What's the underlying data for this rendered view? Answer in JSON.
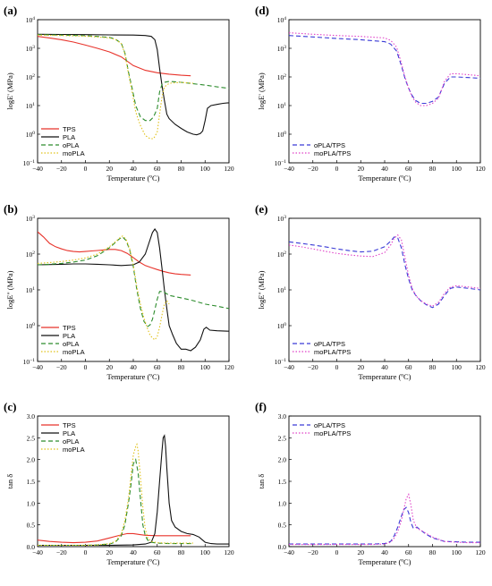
{
  "figure": {
    "background": "#ffffff"
  },
  "colors": {
    "TPS": "#e8332b",
    "PLA": "#111111",
    "oPLA": "#2d8c2d",
    "moPLA": "#e0c21a",
    "oPLA/TPS": "#3a3ad6",
    "moPLA/TPS": "#e040c8"
  },
  "chart_data": [
    {
      "panel": "(a)",
      "type": "line",
      "xlabel": "Temperature (ºC)",
      "ylabel": "logE' (MPa)",
      "xlim": [
        -40,
        120
      ],
      "ylim_log10": [
        -1,
        4
      ],
      "xticks": [
        "-40",
        "-20",
        "0",
        "20",
        "40",
        "60",
        "80",
        "100",
        "120"
      ],
      "yticks": [
        "10-1",
        "100",
        "101",
        "102",
        "103",
        "104"
      ],
      "legend_position": "bottom-left",
      "series": [
        {
          "name": "TPS",
          "x": [
            -40,
            -30,
            -20,
            -10,
            0,
            10,
            20,
            30,
            40,
            50,
            60,
            70,
            80,
            88
          ],
          "y": [
            2600,
            2300,
            2000,
            1650,
            1300,
            1000,
            750,
            500,
            250,
            170,
            140,
            125,
            115,
            110
          ]
        },
        {
          "name": "PLA",
          "x": [
            -40,
            -20,
            0,
            20,
            40,
            50,
            55,
            58,
            60,
            62,
            64,
            66,
            68,
            70,
            75,
            80,
            85,
            90,
            93,
            96,
            98,
            100,
            102,
            105,
            110,
            115,
            120
          ],
          "y": [
            3100,
            3050,
            3000,
            2950,
            2900,
            2800,
            2600,
            2000,
            900,
            200,
            50,
            15,
            5,
            3.5,
            2.2,
            1.6,
            1.2,
            1.0,
            0.95,
            1.05,
            1.3,
            3,
            8,
            10,
            11,
            12,
            12.5
          ]
        },
        {
          "name": "oPLA",
          "x": [
            -40,
            -20,
            0,
            10,
            20,
            25,
            30,
            33,
            36,
            39,
            42,
            46,
            50,
            54,
            57,
            60,
            62,
            64,
            66,
            70,
            75,
            80,
            90,
            100,
            110,
            120
          ],
          "y": [
            3000,
            2900,
            2750,
            2600,
            2400,
            2100,
            1500,
            700,
            150,
            40,
            10,
            4,
            3,
            3,
            4,
            8,
            30,
            55,
            65,
            70,
            68,
            65,
            58,
            52,
            45,
            40
          ]
        },
        {
          "name": "moPLA",
          "x": [
            -40,
            -20,
            0,
            10,
            20,
            25,
            30,
            33,
            36,
            39,
            42,
            46,
            50,
            54,
            57,
            60,
            62,
            64,
            66,
            70,
            80,
            90
          ],
          "y": [
            2900,
            2800,
            2650,
            2500,
            2300,
            2050,
            1450,
            650,
            130,
            30,
            6,
            2,
            0.9,
            0.7,
            0.7,
            1.2,
            5,
            20,
            45,
            60,
            65,
            60
          ]
        }
      ]
    },
    {
      "panel": "(b)",
      "type": "line",
      "xlabel": "Temperature (ºC)",
      "ylabel": "logE'' (MPa)",
      "xlim": [
        -40,
        120
      ],
      "ylim_log10": [
        -1,
        3
      ],
      "xticks": [
        "-40",
        "-20",
        "0",
        "20",
        "40",
        "60",
        "80",
        "100",
        "120"
      ],
      "yticks": [
        "10-1",
        "100",
        "101",
        "102",
        "103"
      ],
      "legend_position": "bottom-left",
      "series": [
        {
          "name": "TPS",
          "x": [
            -40,
            -35,
            -30,
            -25,
            -20,
            -15,
            -10,
            -5,
            0,
            5,
            10,
            15,
            20,
            25,
            30,
            35,
            40,
            45,
            50,
            55,
            60,
            65,
            70,
            75,
            80,
            88
          ],
          "y": [
            420,
            300,
            200,
            160,
            140,
            125,
            118,
            115,
            118,
            122,
            126,
            130,
            135,
            135,
            125,
            105,
            80,
            60,
            48,
            42,
            37,
            33,
            30,
            28,
            27,
            26
          ]
        },
        {
          "name": "PLA",
          "x": [
            -40,
            -20,
            -10,
            0,
            10,
            20,
            30,
            40,
            45,
            50,
            53,
            56,
            58,
            60,
            62,
            64,
            66,
            68,
            70,
            73,
            76,
            80,
            84,
            88,
            92,
            96,
            99,
            101,
            104,
            110,
            120
          ],
          "y": [
            50,
            52,
            53,
            53,
            52,
            50,
            48,
            50,
            60,
            100,
            200,
            400,
            500,
            400,
            150,
            40,
            10,
            3,
            1,
            0.55,
            0.32,
            0.22,
            0.22,
            0.2,
            0.25,
            0.4,
            0.8,
            0.9,
            0.75,
            0.72,
            0.7
          ]
        },
        {
          "name": "oPLA",
          "x": [
            -40,
            -30,
            -20,
            -10,
            0,
            10,
            20,
            25,
            28,
            31,
            34,
            37,
            40,
            43,
            46,
            49,
            52,
            54,
            56,
            58,
            60,
            62,
            65,
            70,
            80,
            90,
            100,
            110,
            120
          ],
          "y": [
            50,
            52,
            55,
            60,
            68,
            90,
            150,
            210,
            260,
            300,
            240,
            130,
            45,
            10,
            3,
            1.3,
            0.95,
            1.05,
            1.5,
            2.8,
            5.5,
            9,
            9,
            7,
            6,
            5,
            4,
            3.5,
            3
          ]
        },
        {
          "name": "moPLA",
          "x": [
            -40,
            -30,
            -20,
            -10,
            0,
            10,
            20,
            25,
            28,
            31,
            34,
            37,
            40,
            43,
            46,
            49,
            52,
            54,
            56,
            58,
            60,
            62,
            64,
            66,
            68,
            70
          ],
          "y": [
            55,
            58,
            62,
            68,
            78,
            100,
            160,
            220,
            270,
            320,
            260,
            140,
            50,
            12,
            4,
            1.6,
            0.8,
            0.55,
            0.45,
            0.4,
            0.5,
            0.9,
            2,
            4,
            5,
            4
          ]
        }
      ]
    },
    {
      "panel": "(c)",
      "type": "line",
      "xlabel": "Temperature (ºC)",
      "ylabel": "tan δ",
      "xlim": [
        -40,
        120
      ],
      "ylim": [
        0,
        3.0
      ],
      "xticks": [
        "-40",
        "-20",
        "0",
        "20",
        "40",
        "60",
        "80",
        "100",
        "120"
      ],
      "yticks": [
        "0.0",
        "0.5",
        "1.0",
        "1.5",
        "2.0",
        "2.5",
        "3.0"
      ],
      "legend_position": "top-left",
      "series": [
        {
          "name": "TPS",
          "x": [
            -40,
            -30,
            -20,
            -10,
            0,
            10,
            20,
            30,
            35,
            40,
            45,
            50,
            60,
            70,
            80,
            88
          ],
          "y": [
            0.15,
            0.12,
            0.1,
            0.09,
            0.1,
            0.13,
            0.2,
            0.27,
            0.3,
            0.3,
            0.28,
            0.26,
            0.25,
            0.25,
            0.25,
            0.25
          ]
        },
        {
          "name": "PLA",
          "x": [
            -40,
            -20,
            0,
            20,
            40,
            50,
            55,
            58,
            60,
            62,
            64,
            65,
            66,
            67,
            68,
            70,
            72,
            75,
            80,
            85,
            90,
            95,
            100,
            105,
            110,
            120
          ],
          "y": [
            0.03,
            0.03,
            0.03,
            0.03,
            0.04,
            0.06,
            0.1,
            0.3,
            0.8,
            1.5,
            2.2,
            2.5,
            2.55,
            2.3,
            1.8,
            1.0,
            0.6,
            0.45,
            0.35,
            0.3,
            0.28,
            0.22,
            0.1,
            0.07,
            0.06,
            0.06
          ]
        },
        {
          "name": "oPLA",
          "x": [
            -40,
            -20,
            0,
            10,
            20,
            25,
            30,
            33,
            36,
            38,
            40,
            42,
            44,
            46,
            48,
            50,
            52,
            55,
            60,
            70,
            80,
            90
          ],
          "y": [
            0.03,
            0.03,
            0.03,
            0.04,
            0.06,
            0.1,
            0.25,
            0.5,
            1.0,
            1.4,
            1.9,
            2.0,
            1.7,
            1.1,
            0.5,
            0.25,
            0.15,
            0.1,
            0.08,
            0.07,
            0.07,
            0.07
          ]
        },
        {
          "name": "moPLA",
          "x": [
            -40,
            -20,
            0,
            10,
            20,
            25,
            30,
            33,
            36,
            38,
            40,
            42,
            43,
            44,
            46,
            48,
            50,
            52,
            55,
            60,
            70,
            80,
            90
          ],
          "y": [
            0.03,
            0.03,
            0.03,
            0.04,
            0.07,
            0.12,
            0.3,
            0.6,
            1.1,
            1.6,
            2.1,
            2.3,
            2.35,
            2.2,
            1.6,
            0.9,
            0.4,
            0.2,
            0.12,
            0.09,
            0.08,
            0.08,
            0.08
          ]
        }
      ]
    },
    {
      "panel": "(d)",
      "type": "line",
      "xlabel": "Temperature (ºC)",
      "ylabel": "logE' (MPa)",
      "xlim": [
        -40,
        120
      ],
      "ylim_log10": [
        -1,
        4
      ],
      "xticks": [
        "-40",
        "-20",
        "0",
        "20",
        "40",
        "60",
        "80",
        "100",
        "120"
      ],
      "yticks": [
        "10-1",
        "100",
        "101",
        "102",
        "103",
        "104"
      ],
      "legend_position": "bottom-left",
      "series": [
        {
          "name": "oPLA/TPS",
          "x": [
            -40,
            -20,
            0,
            20,
            40,
            45,
            50,
            54,
            57,
            60,
            63,
            66,
            70,
            75,
            80,
            85,
            90,
            95,
            100,
            110,
            120
          ],
          "y": [
            2800,
            2500,
            2200,
            2000,
            1700,
            1400,
            800,
            250,
            90,
            40,
            22,
            15,
            12,
            12,
            14,
            20,
            60,
            100,
            100,
            95,
            90
          ]
        },
        {
          "name": "moPLA/TPS",
          "x": [
            -40,
            -20,
            0,
            20,
            40,
            45,
            50,
            54,
            57,
            60,
            63,
            66,
            70,
            75,
            80,
            85,
            90,
            95,
            100,
            110,
            120
          ],
          "y": [
            3500,
            3100,
            2800,
            2600,
            2300,
            1900,
            1100,
            300,
            100,
            40,
            20,
            13,
            10,
            10,
            12,
            18,
            70,
            130,
            130,
            120,
            110
          ]
        }
      ]
    },
    {
      "panel": "(e)",
      "type": "line",
      "xlabel": "Temperature (ºC)",
      "ylabel": "logE'' (MPa)",
      "xlim": [
        -40,
        120
      ],
      "ylim_log10": [
        -1,
        3
      ],
      "xticks": [
        "-40",
        "-20",
        "0",
        "20",
        "40",
        "60",
        "80",
        "100",
        "120"
      ],
      "yticks": [
        "10-1",
        "100",
        "101",
        "102",
        "103"
      ],
      "legend_position": "bottom-left",
      "series": [
        {
          "name": "oPLA/TPS",
          "x": [
            -40,
            -30,
            -20,
            -10,
            0,
            10,
            20,
            30,
            40,
            45,
            48,
            51,
            54,
            57,
            60,
            63,
            66,
            70,
            75,
            80,
            85,
            90,
            95,
            100,
            110,
            120
          ],
          "y": [
            220,
            200,
            180,
            160,
            140,
            125,
            115,
            120,
            160,
            230,
            300,
            280,
            150,
            50,
            20,
            10,
            7,
            5,
            3.8,
            3.2,
            4,
            7,
            11,
            12,
            11,
            10
          ]
        },
        {
          "name": "moPLA/TPS",
          "x": [
            -40,
            -30,
            -20,
            -10,
            0,
            10,
            20,
            30,
            40,
            45,
            48,
            51,
            54,
            57,
            60,
            63,
            66,
            70,
            75,
            80,
            85,
            90,
            95,
            100,
            110,
            120
          ],
          "y": [
            180,
            160,
            140,
            120,
            105,
            95,
            88,
            85,
            110,
            180,
            280,
            340,
            250,
            80,
            25,
            11,
            7,
            5,
            4,
            3.5,
            4.5,
            8,
            12,
            13,
            12,
            11
          ]
        }
      ]
    },
    {
      "panel": "(f)",
      "type": "line",
      "xlabel": "Temperature (ºC)",
      "ylabel": "tan δ",
      "xlim": [
        -40,
        120
      ],
      "ylim": [
        0,
        3.0
      ],
      "xticks": [
        "-40",
        "-20",
        "0",
        "20",
        "40",
        "60",
        "80",
        "100",
        "120"
      ],
      "yticks": [
        "0.0",
        "0.5",
        "1.0",
        "1.5",
        "2.0",
        "2.5",
        "3.0"
      ],
      "legend_position": "top-left",
      "series": [
        {
          "name": "oPLA/TPS",
          "x": [
            -40,
            -20,
            0,
            20,
            30,
            40,
            45,
            48,
            51,
            54,
            56,
            58,
            60,
            62,
            64,
            67,
            70,
            75,
            80,
            90,
            100,
            110,
            120
          ],
          "y": [
            0.06,
            0.06,
            0.06,
            0.06,
            0.06,
            0.07,
            0.12,
            0.25,
            0.45,
            0.7,
            0.85,
            0.9,
            0.78,
            0.55,
            0.42,
            0.45,
            0.38,
            0.28,
            0.2,
            0.12,
            0.11,
            0.1,
            0.1
          ]
        },
        {
          "name": "moPLA/TPS",
          "x": [
            -40,
            -20,
            0,
            20,
            30,
            40,
            45,
            48,
            51,
            54,
            56,
            58,
            60,
            62,
            64,
            67,
            70,
            75,
            80,
            90,
            100,
            110,
            120
          ],
          "y": [
            0.05,
            0.05,
            0.05,
            0.05,
            0.05,
            0.06,
            0.1,
            0.2,
            0.35,
            0.6,
            0.85,
            1.1,
            1.2,
            0.95,
            0.6,
            0.42,
            0.38,
            0.3,
            0.22,
            0.12,
            0.1,
            0.09,
            0.09
          ]
        }
      ]
    }
  ]
}
